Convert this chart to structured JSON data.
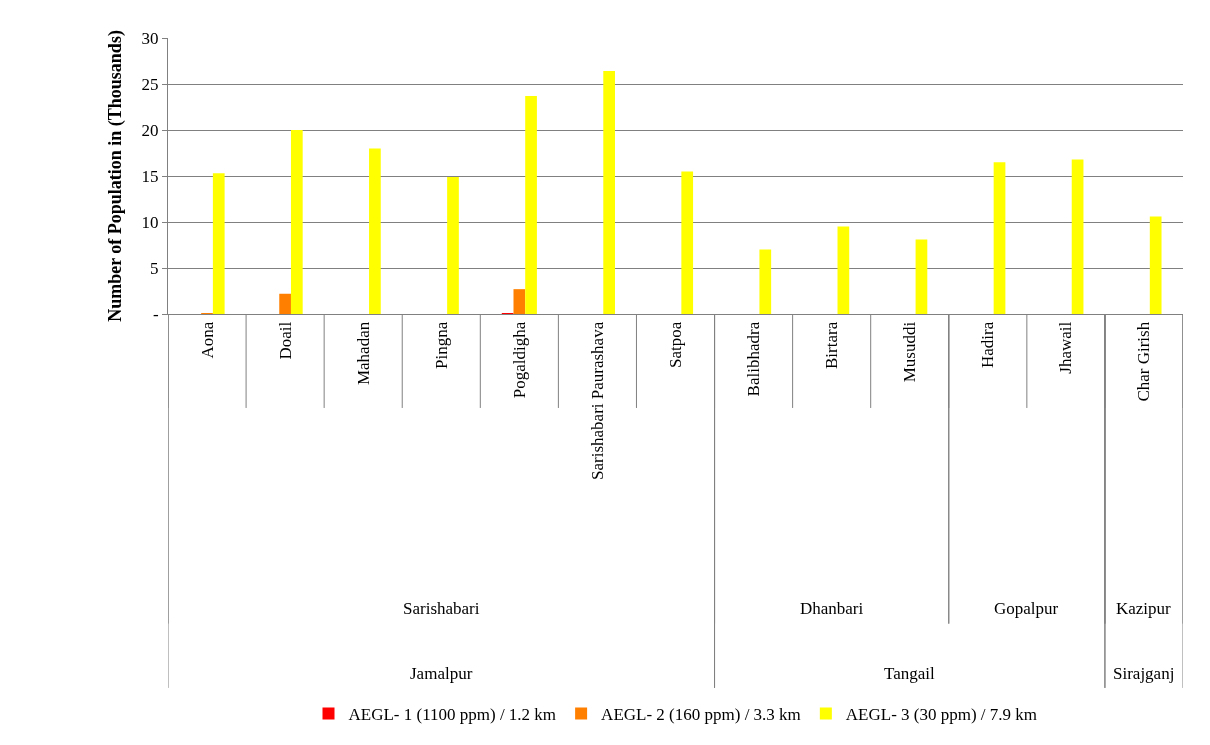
{
  "chart_data": {
    "type": "bar",
    "ylabel": "Number of Population in (Thousands)",
    "categories": [
      "Aona",
      "Doail",
      "Mahadan",
      "Pingna",
      "Pogaldigha",
      "Sarishabari Paurashava",
      "Satpoa",
      "Balibhadra",
      "Birtara",
      "Musuddi",
      "Hadira",
      "Jhawail",
      "Char Girish"
    ],
    "series": [
      {
        "name": "AEGL- 1 (1100 ppm) / 1.2 km",
        "color": "#ff0000",
        "values": [
          0,
          0,
          0,
          0,
          0.1,
          0,
          0,
          0,
          0,
          0,
          0,
          0,
          0
        ]
      },
      {
        "name": "AEGL- 2 (160 ppm) / 3.3 km",
        "color": "#ff8000",
        "values": [
          0.1,
          2.2,
          0,
          0,
          2.7,
          0,
          0,
          0,
          0,
          0,
          0,
          0,
          0
        ]
      },
      {
        "name": "AEGL- 3 (30 ppm) / 7.9 km",
        "color": "#ffff00",
        "values": [
          15.3,
          20.0,
          18.0,
          14.9,
          23.7,
          26.4,
          15.5,
          7.0,
          9.5,
          8.1,
          16.5,
          16.8,
          10.6
        ]
      }
    ],
    "annotations": [
      "Sarishabari",
      "Dhanbari",
      "Gopalpur",
      "Kazipur",
      "Jamalpur",
      "Tangail",
      "Sirajganj"
    ],
    "ylim": [
      0,
      30
    ],
    "yticks": [
      {
        "value": 0,
        "label": "-"
      },
      5,
      10,
      15,
      20,
      25,
      30
    ],
    "grid": "y",
    "legend": "bottom"
  }
}
